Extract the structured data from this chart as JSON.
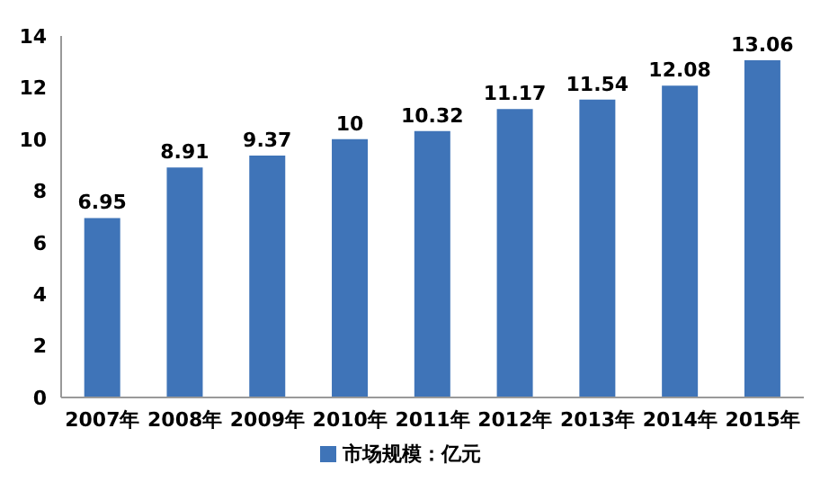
{
  "chart_data": {
    "type": "bar",
    "categories": [
      "2007年",
      "2008年",
      "2009年",
      "2010年",
      "2011年",
      "2012年",
      "2013年",
      "2014年",
      "2015年"
    ],
    "series": [
      {
        "name": "市场规模：亿元",
        "color": "#3f74b8",
        "values": [
          6.95,
          8.91,
          9.37,
          10,
          10.32,
          11.17,
          11.54,
          12.08,
          13.06
        ]
      }
    ],
    "ylim": [
      0,
      14
    ],
    "yticks": [
      0,
      2,
      4,
      6,
      8,
      10,
      12,
      14
    ],
    "data_labels": true,
    "legend": "bottom",
    "grid": false
  }
}
